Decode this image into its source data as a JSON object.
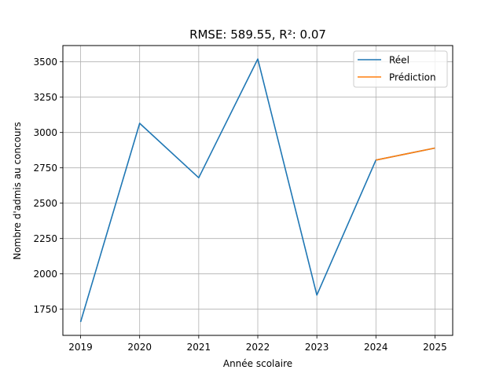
{
  "chart_data": {
    "type": "line",
    "title": "RMSE: 589.55, R²: 0.07",
    "xlabel": "Année scolaire",
    "ylabel": "Nombre d'admis au concours",
    "x_ticks": [
      "2019",
      "2020",
      "2021",
      "2022",
      "2023",
      "2024",
      "2025"
    ],
    "y_ticks": [
      "1750",
      "2000",
      "2250",
      "2500",
      "2750",
      "3000",
      "3250",
      "3500"
    ],
    "xlim": [
      2018.7,
      2025.3
    ],
    "ylim": [
      1565,
      3615
    ],
    "grid": true,
    "legend_position": "top-right",
    "series": [
      {
        "name": "Réel",
        "color": "#1f77b4",
        "x": [
          2019,
          2020,
          2021,
          2022,
          2023,
          2024,
          2025
        ],
        "y": [
          1660,
          3065,
          2680,
          3520,
          1850,
          2805,
          2890
        ]
      },
      {
        "name": "Prédiction",
        "color": "#ff7f0e",
        "x": [
          2024,
          2025
        ],
        "y": [
          2805,
          2890
        ]
      }
    ]
  }
}
